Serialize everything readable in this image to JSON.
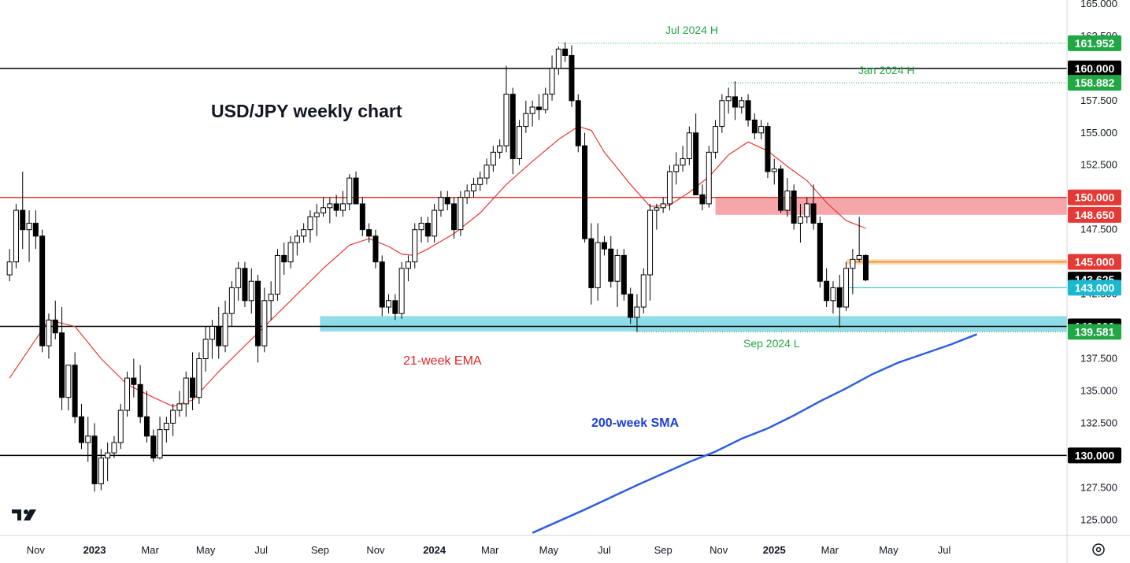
{
  "chart_data": {
    "type": "candlestick",
    "title": "USD/JPY weekly chart",
    "ylim": [
      123.8,
      165.3
    ],
    "y_ticks": [
      125.0,
      127.5,
      130.0,
      132.5,
      135.0,
      137.5,
      140.0,
      142.5,
      145.0,
      147.5,
      150.0,
      152.5,
      155.0,
      157.5,
      160.0,
      162.5,
      165.0
    ],
    "x_ticks": [
      {
        "label": "Nov",
        "t": 4,
        "bold": false
      },
      {
        "label": "2023",
        "t": 13,
        "bold": true
      },
      {
        "label": "Mar",
        "t": 21.5,
        "bold": false
      },
      {
        "label": "May",
        "t": 30,
        "bold": false
      },
      {
        "label": "Jul",
        "t": 38.5,
        "bold": false
      },
      {
        "label": "Sep",
        "t": 47.5,
        "bold": false
      },
      {
        "label": "Nov",
        "t": 56,
        "bold": false
      },
      {
        "label": "2024",
        "t": 65,
        "bold": true
      },
      {
        "label": "Mar",
        "t": 73.5,
        "bold": false
      },
      {
        "label": "May",
        "t": 82.5,
        "bold": false
      },
      {
        "label": "Jul",
        "t": 91,
        "bold": false
      },
      {
        "label": "Sep",
        "t": 100,
        "bold": false
      },
      {
        "label": "Nov",
        "t": 108.5,
        "bold": false
      },
      {
        "label": "2025",
        "t": 117,
        "bold": true
      },
      {
        "label": "Mar",
        "t": 125.5,
        "bold": false
      },
      {
        "label": "May",
        "t": 134.5,
        "bold": false
      },
      {
        "label": "Jul",
        "t": 143,
        "bold": false
      }
    ],
    "candles": [
      [
        0,
        144.0,
        146.0,
        143.5,
        145.0
      ],
      [
        1,
        145.0,
        149.5,
        144.5,
        149.0
      ],
      [
        2,
        149.0,
        152.0,
        146.0,
        147.5
      ],
      [
        3,
        147.5,
        149.0,
        145.0,
        148.0
      ],
      [
        4,
        148.0,
        149.0,
        146.0,
        147.0
      ],
      [
        5,
        147.0,
        147.5,
        138.0,
        138.5
      ],
      [
        6,
        138.5,
        141.0,
        137.5,
        140.5
      ],
      [
        7,
        140.5,
        142.0,
        139.0,
        139.5
      ],
      [
        8,
        139.5,
        141.5,
        133.5,
        134.5
      ],
      [
        9,
        134.5,
        137.0,
        133.5,
        137.0
      ],
      [
        10,
        137.0,
        138.0,
        132.5,
        133.0
      ],
      [
        11,
        133.0,
        134.0,
        130.5,
        131.0
      ],
      [
        12,
        131.0,
        133.0,
        129.5,
        131.5
      ],
      [
        13,
        131.5,
        132.5,
        127.2,
        127.8
      ],
      [
        14,
        127.8,
        130.5,
        127.3,
        129.8
      ],
      [
        15,
        129.8,
        131.0,
        128.0,
        130.2
      ],
      [
        16,
        130.2,
        131.5,
        129.8,
        131.0
      ],
      [
        17,
        131.0,
        134.0,
        130.5,
        133.5
      ],
      [
        18,
        133.5,
        136.5,
        133.0,
        136.0
      ],
      [
        19,
        136.0,
        137.5,
        134.5,
        135.5
      ],
      [
        20,
        135.5,
        137.0,
        132.5,
        133.0
      ],
      [
        21,
        133.0,
        135.0,
        131.0,
        131.5
      ],
      [
        22,
        131.5,
        132.0,
        129.5,
        129.8
      ],
      [
        23,
        129.8,
        133.0,
        129.7,
        132.0
      ],
      [
        24,
        132.0,
        133.0,
        131.0,
        132.5
      ],
      [
        25,
        132.5,
        134.0,
        131.5,
        133.5
      ],
      [
        26,
        133.5,
        135.0,
        133.0,
        134.0
      ],
      [
        27,
        134.0,
        136.5,
        133.0,
        136.0
      ],
      [
        28,
        136.0,
        138.0,
        133.5,
        134.5
      ],
      [
        29,
        134.5,
        138.0,
        134.0,
        137.5
      ],
      [
        30,
        137.5,
        140.0,
        136.5,
        139.0
      ],
      [
        31,
        139.0,
        140.5,
        137.5,
        140.0
      ],
      [
        32,
        140.0,
        141.5,
        137.5,
        138.5
      ],
      [
        33,
        138.5,
        142.0,
        138.0,
        141.0
      ],
      [
        34,
        141.0,
        143.5,
        140.0,
        143.0
      ],
      [
        35,
        143.0,
        145.0,
        142.0,
        144.5
      ],
      [
        36,
        144.5,
        145.0,
        141.5,
        142.0
      ],
      [
        37,
        142.0,
        144.5,
        141.0,
        143.5
      ],
      [
        38,
        143.5,
        144.0,
        137.2,
        138.5
      ],
      [
        39,
        138.5,
        143.0,
        138.0,
        142.0
      ],
      [
        40,
        142.0,
        143.5,
        140.5,
        142.5
      ],
      [
        41,
        142.5,
        146.0,
        142.0,
        145.5
      ],
      [
        42,
        145.5,
        146.5,
        144.0,
        145.0
      ],
      [
        43,
        145.0,
        147.0,
        144.5,
        146.5
      ],
      [
        44,
        146.5,
        147.5,
        145.5,
        147.0
      ],
      [
        45,
        147.0,
        148.0,
        146.5,
        147.5
      ],
      [
        46,
        147.5,
        149.0,
        146.5,
        148.5
      ],
      [
        47,
        148.5,
        149.5,
        147.0,
        148.8
      ],
      [
        48,
        148.8,
        150.0,
        148.5,
        149.2
      ],
      [
        49,
        149.2,
        150.0,
        148.0,
        149.5
      ],
      [
        50,
        149.5,
        150.2,
        148.5,
        149.0
      ],
      [
        51,
        149.0,
        150.5,
        148.5,
        149.5
      ],
      [
        52,
        149.5,
        151.8,
        149.0,
        151.5
      ],
      [
        53,
        151.5,
        152.0,
        149.5,
        149.5
      ],
      [
        54,
        149.5,
        150.0,
        147.0,
        147.5
      ],
      [
        55,
        147.5,
        148.0,
        146.5,
        147.0
      ],
      [
        56,
        147.0,
        147.5,
        144.5,
        145.0
      ],
      [
        57,
        145.0,
        145.5,
        140.8,
        141.5
      ],
      [
        58,
        141.5,
        142.5,
        141.0,
        142.0
      ],
      [
        59,
        142.0,
        142.5,
        140.5,
        141.0
      ],
      [
        60,
        141.0,
        145.0,
        140.6,
        144.5
      ],
      [
        61,
        144.5,
        145.5,
        143.5,
        145.0
      ],
      [
        62,
        145.0,
        148.0,
        144.5,
        147.5
      ],
      [
        63,
        147.5,
        148.5,
        146.5,
        148.0
      ],
      [
        64,
        148.0,
        148.5,
        146.5,
        147.0
      ],
      [
        65,
        147.0,
        149.5,
        146.5,
        149.0
      ],
      [
        66,
        149.0,
        150.5,
        148.5,
        150.0
      ],
      [
        67,
        150.0,
        150.5,
        149.0,
        149.5
      ],
      [
        68,
        149.5,
        150.0,
        146.8,
        147.5
      ],
      [
        69,
        147.5,
        150.5,
        147.0,
        150.0
      ],
      [
        70,
        150.0,
        151.0,
        149.5,
        150.5
      ],
      [
        71,
        150.5,
        151.5,
        150.0,
        151.0
      ],
      [
        72,
        151.0,
        152.0,
        150.5,
        151.5
      ],
      [
        73,
        151.5,
        153.0,
        151.0,
        152.5
      ],
      [
        74,
        152.5,
        154.0,
        152.0,
        153.5
      ],
      [
        75,
        153.5,
        154.5,
        153.0,
        154.0
      ],
      [
        76,
        154.0,
        160.2,
        153.5,
        158.0
      ],
      [
        77,
        158.0,
        158.5,
        151.8,
        153.0
      ],
      [
        78,
        153.0,
        156.0,
        152.5,
        155.5
      ],
      [
        79,
        155.5,
        157.5,
        155.0,
        156.5
      ],
      [
        80,
        156.5,
        157.5,
        155.5,
        157.0
      ],
      [
        81,
        157.0,
        158.0,
        156.0,
        156.8
      ],
      [
        82,
        156.8,
        158.5,
        156.5,
        158.0
      ],
      [
        83,
        158.0,
        161.0,
        157.5,
        160.0
      ],
      [
        84,
        160.0,
        161.7,
        159.5,
        161.5
      ],
      [
        85,
        161.5,
        162.0,
        160.5,
        161.0
      ],
      [
        86,
        161.0,
        161.8,
        157.0,
        157.5
      ],
      [
        87,
        157.5,
        158.0,
        153.5,
        154.0
      ],
      [
        88,
        154.0,
        155.0,
        146.5,
        146.8
      ],
      [
        89,
        146.8,
        148.0,
        141.7,
        143.0
      ],
      [
        90,
        143.0,
        148.0,
        142.0,
        146.5
      ],
      [
        91,
        146.5,
        147.0,
        145.5,
        146.0
      ],
      [
        92,
        146.0,
        147.0,
        143.0,
        143.5
      ],
      [
        93,
        143.5,
        146.0,
        141.5,
        145.5
      ],
      [
        94,
        145.5,
        146.0,
        142.0,
        142.5
      ],
      [
        95,
        142.5,
        143.0,
        140.2,
        140.7
      ],
      [
        96,
        140.7,
        142.5,
        139.58,
        141.5
      ],
      [
        97,
        141.5,
        144.5,
        141.0,
        144.0
      ],
      [
        98,
        144.0,
        149.5,
        142.0,
        149.0
      ],
      [
        99,
        149.0,
        149.5,
        147.5,
        149.2
      ],
      [
        100,
        149.2,
        150.0,
        148.8,
        149.5
      ],
      [
        101,
        149.5,
        152.5,
        149.0,
        152.0
      ],
      [
        102,
        152.0,
        153.5,
        151.0,
        152.5
      ],
      [
        103,
        152.5,
        154.0,
        152.0,
        153.0
      ],
      [
        104,
        153.0,
        155.5,
        152.5,
        155.0
      ],
      [
        105,
        155.0,
        156.5,
        150.5,
        150.2
      ],
      [
        106,
        150.2,
        151.0,
        149.0,
        149.5
      ],
      [
        107,
        149.5,
        154.0,
        149.2,
        153.5
      ],
      [
        108,
        153.5,
        156.0,
        153.0,
        155.5
      ],
      [
        109,
        155.5,
        158.0,
        155.0,
        157.5
      ],
      [
        110,
        157.5,
        158.5,
        156.5,
        157.8
      ],
      [
        111,
        157.8,
        159.0,
        156.0,
        157.0
      ],
      [
        112,
        157.0,
        157.8,
        156.5,
        157.5
      ],
      [
        113,
        157.5,
        158.0,
        155.5,
        156.0
      ],
      [
        114,
        156.0,
        156.5,
        154.5,
        155.0
      ],
      [
        115,
        155.0,
        156.0,
        154.5,
        155.5
      ],
      [
        116,
        155.5,
        155.8,
        151.5,
        152.0
      ],
      [
        117,
        152.0,
        153.0,
        151.0,
        152.2
      ],
      [
        118,
        152.2,
        152.5,
        148.8,
        149.0
      ],
      [
        119,
        149.0,
        151.5,
        148.5,
        150.5
      ],
      [
        120,
        150.5,
        151.0,
        147.5,
        148.0
      ],
      [
        121,
        148.0,
        149.5,
        146.5,
        148.5
      ],
      [
        122,
        148.5,
        150.0,
        148.0,
        149.5
      ],
      [
        123,
        149.5,
        151.0,
        147.5,
        148.0
      ],
      [
        124,
        148.0,
        148.5,
        143.0,
        143.5
      ],
      [
        125,
        143.5,
        144.5,
        141.5,
        142.0
      ],
      [
        126,
        142.0,
        143.5,
        141.0,
        143.0
      ],
      [
        127,
        143.0,
        144.0,
        139.9,
        141.5
      ],
      [
        128,
        141.5,
        145.0,
        141.2,
        144.5
      ],
      [
        129,
        144.5,
        146.0,
        142.5,
        145.2
      ],
      [
        130,
        145.2,
        148.5,
        145.0,
        145.5
      ],
      [
        131,
        145.5,
        145.6,
        143.5,
        143.6
      ]
    ],
    "ema21": [
      [
        0,
        136.0
      ],
      [
        4,
        139.0
      ],
      [
        6,
        140.5
      ],
      [
        10,
        140.0
      ],
      [
        14,
        137.5
      ],
      [
        18,
        135.5
      ],
      [
        22,
        134.5
      ],
      [
        25,
        133.8
      ],
      [
        28,
        134.3
      ],
      [
        32,
        136.5
      ],
      [
        36,
        138.5
      ],
      [
        40,
        140.5
      ],
      [
        44,
        142.5
      ],
      [
        48,
        144.5
      ],
      [
        52,
        146.3
      ],
      [
        55,
        146.8
      ],
      [
        58,
        146.2
      ],
      [
        60,
        145.6
      ],
      [
        62,
        145.5
      ],
      [
        64,
        146.0
      ],
      [
        68,
        147.2
      ],
      [
        72,
        148.8
      ],
      [
        76,
        151.0
      ],
      [
        80,
        152.8
      ],
      [
        84,
        154.5
      ],
      [
        87,
        155.5
      ],
      [
        89,
        155.2
      ],
      [
        91,
        153.5
      ],
      [
        95,
        151.0
      ],
      [
        98,
        149.3
      ],
      [
        101,
        149.4
      ],
      [
        104,
        150.4
      ],
      [
        107,
        151.6
      ],
      [
        110,
        153.3
      ],
      [
        113,
        154.3
      ],
      [
        116,
        153.6
      ],
      [
        119,
        152.4
      ],
      [
        122,
        151.3
      ],
      [
        125,
        149.6
      ],
      [
        128,
        148.2
      ],
      [
        131,
        147.6
      ]
    ],
    "sma200": [
      [
        80,
        124.0
      ],
      [
        88,
        125.8
      ],
      [
        96,
        127.7
      ],
      [
        104,
        129.5
      ],
      [
        108,
        130.3
      ],
      [
        112,
        131.3
      ],
      [
        116,
        132.1
      ],
      [
        120,
        133.1
      ],
      [
        124,
        134.2
      ],
      [
        128,
        135.2
      ],
      [
        132,
        136.3
      ],
      [
        136,
        137.2
      ],
      [
        140,
        137.9
      ],
      [
        144,
        138.6
      ],
      [
        148,
        139.4
      ],
      [
        152,
        140.1
      ],
      [
        156,
        140.6
      ],
      [
        160,
        141.2
      ]
    ],
    "levels": [
      {
        "price": 160.0,
        "color": "#000000"
      },
      {
        "price": 150.0,
        "color": "#e53935"
      },
      {
        "price": 140.0,
        "color": "#000000"
      },
      {
        "price": 130.0,
        "color": "#000000"
      }
    ],
    "zones": [
      {
        "from": 148.65,
        "to": 150.0,
        "t_start": 108,
        "color": "#f4a6ab"
      },
      {
        "from": 139.6,
        "to": 140.8,
        "t_start": 47.5,
        "color": "#8fdde8"
      },
      {
        "from": 144.8,
        "to": 145.2,
        "t_start": 128,
        "color": "#fcd8b0"
      }
    ],
    "dotted_levels": [
      {
        "price": 161.952,
        "t_start": 84
      },
      {
        "price": 158.882,
        "t_start": 110
      },
      {
        "price": 139.581,
        "t_start": 96
      }
    ],
    "price_tags": [
      {
        "label": "161.952",
        "price": 161.952,
        "bg": "#22a745"
      },
      {
        "label": "160.000",
        "price": 160.0,
        "bg": "#000000"
      },
      {
        "label": "158.882",
        "price": 158.882,
        "bg": "#22a745"
      },
      {
        "label": "150.000",
        "price": 150.0,
        "bg": "#e53935"
      },
      {
        "label": "148.650",
        "price": 148.65,
        "bg": "#e53935"
      },
      {
        "label": "145.000",
        "price": 145.0,
        "bg": "#e53935"
      },
      {
        "label": "143.625",
        "price": 143.625,
        "bg": "#000000"
      },
      {
        "label": "143.000",
        "price": 143.0,
        "bg": "#1cb8cf"
      },
      {
        "label": "140.000",
        "price": 140.0,
        "bg": "#000000"
      },
      {
        "label": "139.581",
        "price": 139.581,
        "bg": "#22a745"
      },
      {
        "label": "130.000",
        "price": 130.0,
        "bg": "#000000"
      }
    ],
    "annotations": {
      "title": "USD/JPY weekly chart",
      "jul_high": "Jul 2024 H",
      "jan_high": "Jan 2024 H",
      "sep_low": "Sep 2024 L",
      "ema_label": "21-week EMA",
      "sma_label": "200-week SMA"
    },
    "colors": {
      "up": "#ffffff",
      "down": "#000000",
      "ema": "#e53935",
      "sma": "#2f5fe0"
    }
  }
}
